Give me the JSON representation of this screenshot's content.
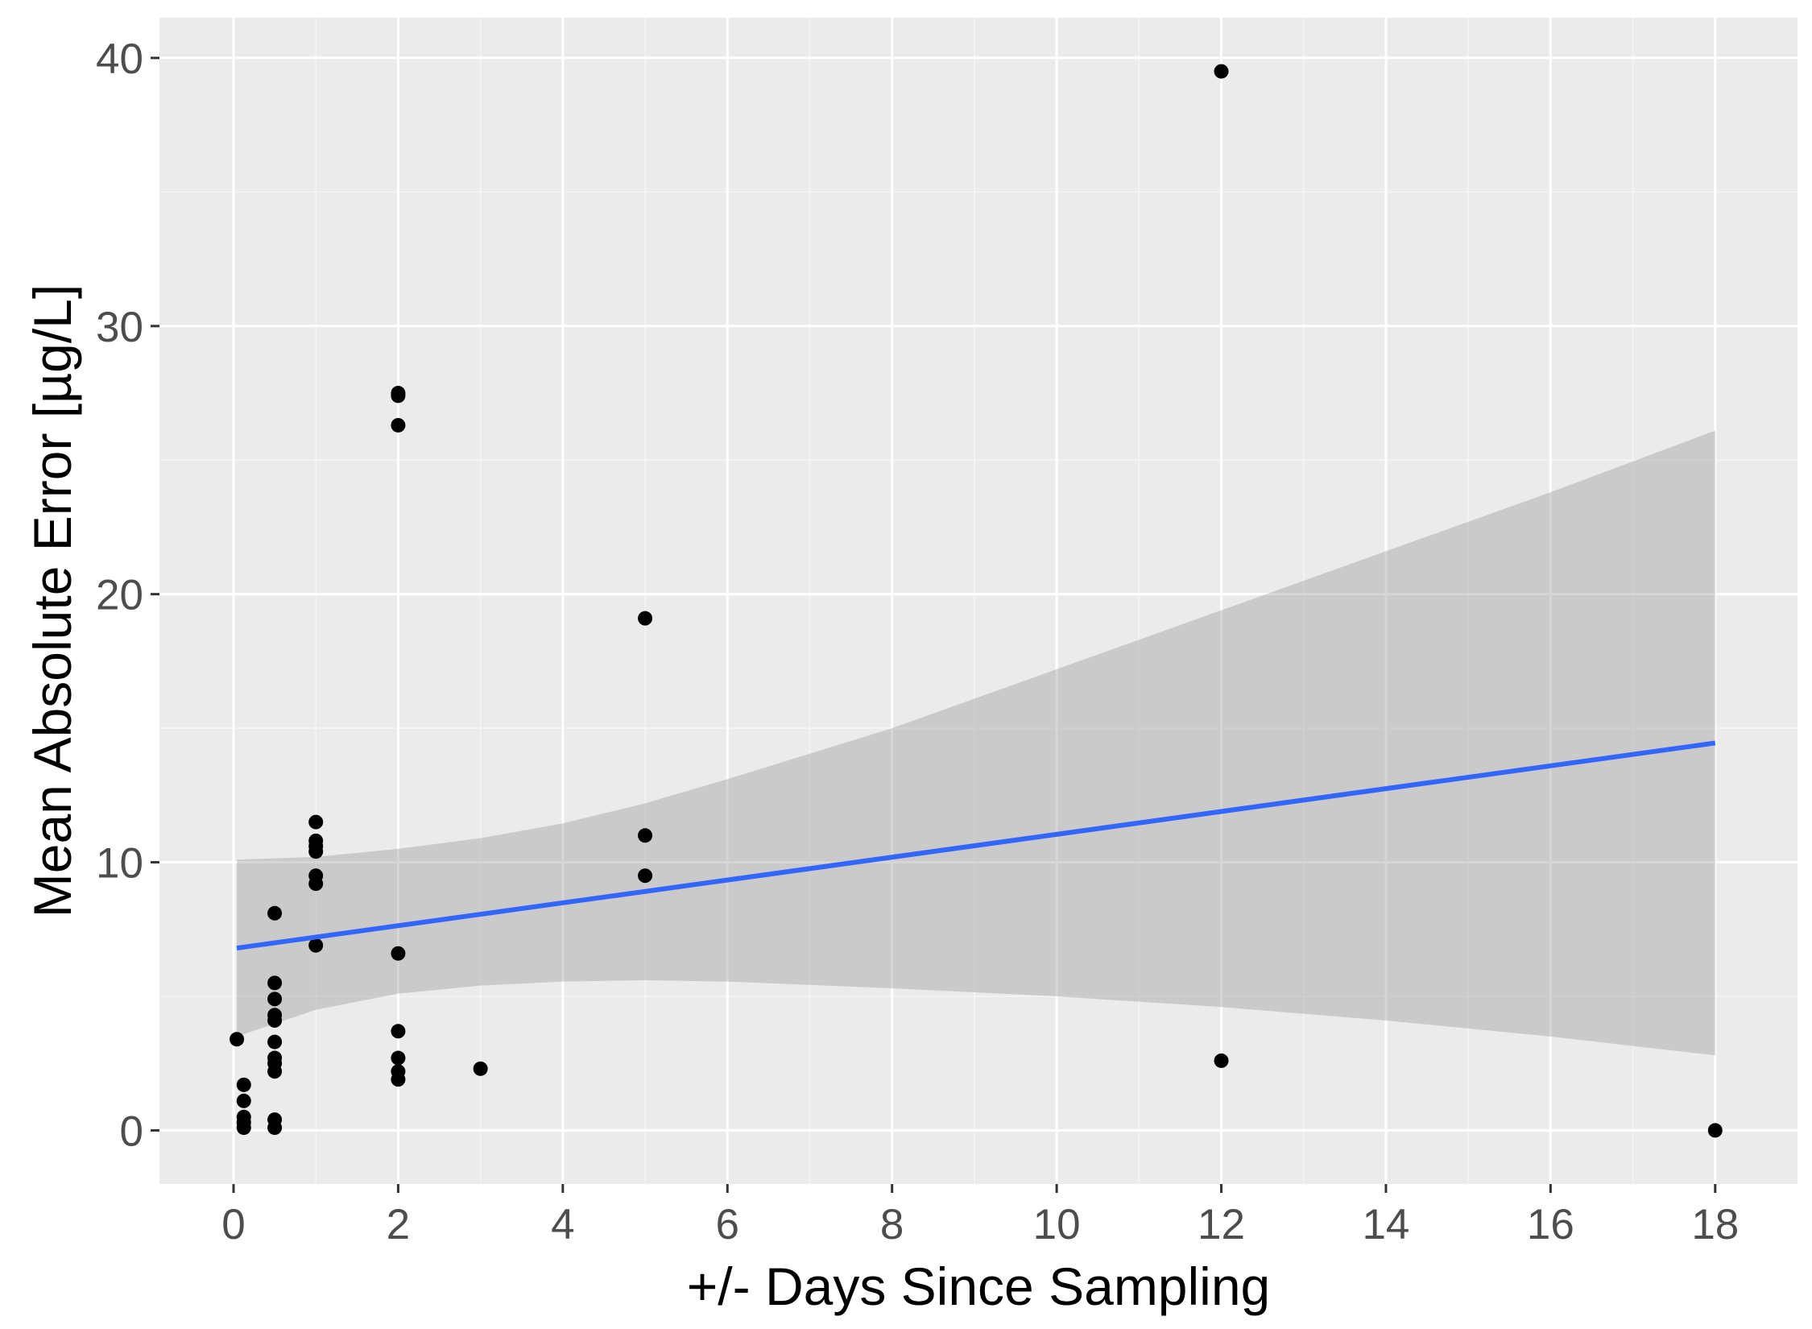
{
  "chart_data": {
    "type": "scatter",
    "title": "",
    "xlabel": "+/- Days Since Sampling",
    "ylabel": "Mean Absolute Error [µg/L]",
    "xlim": [
      -0.9,
      19
    ],
    "ylim": [
      -2,
      41.5
    ],
    "x_ticks": [
      0,
      2,
      4,
      6,
      8,
      10,
      12,
      14,
      16,
      18
    ],
    "y_ticks": [
      0,
      10,
      20,
      30,
      40
    ],
    "x_tick_labels": [
      "0",
      "2",
      "4",
      "6",
      "8",
      "10",
      "12",
      "14",
      "16",
      "18"
    ],
    "y_tick_labels": [
      "0",
      "10",
      "20",
      "30",
      "40"
    ],
    "grid": true,
    "legend": "none",
    "colors": {
      "panel_background": "#ebebeb",
      "grid_major": "#ffffff",
      "grid_minor": "#f5f5f5",
      "points": "#000000",
      "fit_line": "#3366ff",
      "confidence_band": "#999999"
    },
    "points": [
      {
        "x": 0.04,
        "y": 3.4
      },
      {
        "x": 0.125,
        "y": 1.7
      },
      {
        "x": 0.125,
        "y": 1.1
      },
      {
        "x": 0.125,
        "y": 0.5
      },
      {
        "x": 0.125,
        "y": 0.3
      },
      {
        "x": 0.125,
        "y": 0.1
      },
      {
        "x": 0.5,
        "y": 8.1
      },
      {
        "x": 0.5,
        "y": 5.5
      },
      {
        "x": 0.5,
        "y": 4.9
      },
      {
        "x": 0.5,
        "y": 4.3
      },
      {
        "x": 0.5,
        "y": 4.1
      },
      {
        "x": 0.5,
        "y": 3.3
      },
      {
        "x": 0.5,
        "y": 2.7
      },
      {
        "x": 0.5,
        "y": 2.5
      },
      {
        "x": 0.5,
        "y": 2.2
      },
      {
        "x": 0.5,
        "y": 0.4
      },
      {
        "x": 0.5,
        "y": 0.1
      },
      {
        "x": 1,
        "y": 11.5
      },
      {
        "x": 1,
        "y": 10.8
      },
      {
        "x": 1,
        "y": 10.6
      },
      {
        "x": 1,
        "y": 10.4
      },
      {
        "x": 1,
        "y": 9.5
      },
      {
        "x": 1,
        "y": 9.2
      },
      {
        "x": 1,
        "y": 6.9
      },
      {
        "x": 2,
        "y": 27.5
      },
      {
        "x": 2,
        "y": 27.4
      },
      {
        "x": 2,
        "y": 26.3
      },
      {
        "x": 2,
        "y": 6.6
      },
      {
        "x": 2,
        "y": 3.7
      },
      {
        "x": 2,
        "y": 2.7
      },
      {
        "x": 2,
        "y": 2.2
      },
      {
        "x": 2,
        "y": 1.9
      },
      {
        "x": 3,
        "y": 2.3
      },
      {
        "x": 5,
        "y": 19.1
      },
      {
        "x": 5,
        "y": 11.0
      },
      {
        "x": 5,
        "y": 9.5
      },
      {
        "x": 12,
        "y": 39.5
      },
      {
        "x": 12,
        "y": 2.6
      },
      {
        "x": 18,
        "y": 0.0
      }
    ],
    "fit": {
      "method": "linear",
      "x": [
        0.04,
        18
      ],
      "y": [
        6.8,
        14.45
      ]
    },
    "confidence_band": [
      {
        "x": 0.04,
        "lower": 3.5,
        "upper": 10.1
      },
      {
        "x": 1,
        "lower": 4.5,
        "upper": 10.2
      },
      {
        "x": 2,
        "lower": 5.1,
        "upper": 10.5
      },
      {
        "x": 3,
        "lower": 5.4,
        "upper": 10.9
      },
      {
        "x": 4,
        "lower": 5.55,
        "upper": 11.45
      },
      {
        "x": 5,
        "lower": 5.6,
        "upper": 12.2
      },
      {
        "x": 6,
        "lower": 5.55,
        "upper": 13.1
      },
      {
        "x": 8,
        "lower": 5.3,
        "upper": 15.0
      },
      {
        "x": 10,
        "lower": 5.0,
        "upper": 17.2
      },
      {
        "x": 12,
        "lower": 4.6,
        "upper": 19.4
      },
      {
        "x": 14,
        "lower": 4.1,
        "upper": 21.6
      },
      {
        "x": 16,
        "lower": 3.5,
        "upper": 23.8
      },
      {
        "x": 18,
        "lower": 2.8,
        "upper": 26.1
      }
    ]
  }
}
